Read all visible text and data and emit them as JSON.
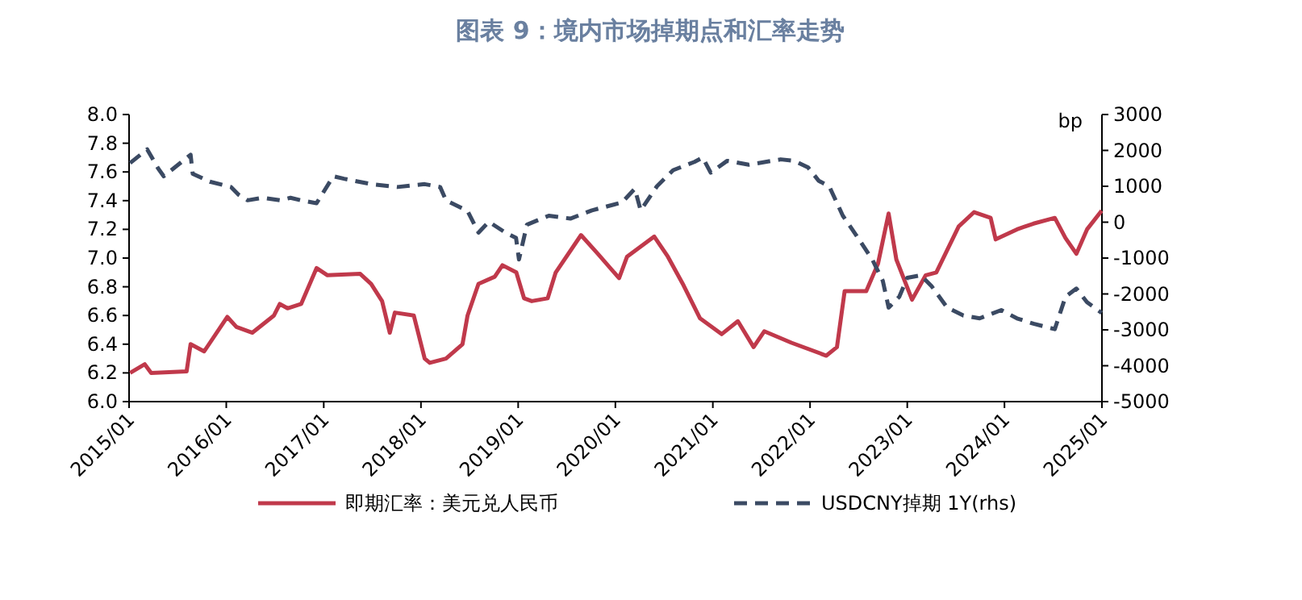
{
  "chart_data": {
    "type": "line",
    "title": "图表 9：境内市场掉期点和汇率走势",
    "y2label": "bp",
    "legend": "bottom",
    "grid": false,
    "xlim": [
      "2015-01-01",
      "2025-01-01"
    ],
    "xticks": [
      {
        "value": "2015-01-01",
        "label": "2015/01"
      },
      {
        "value": "2016-01-01",
        "label": "2016/01"
      },
      {
        "value": "2017-01-01",
        "label": "2017/01"
      },
      {
        "value": "2018-01-01",
        "label": "2018/01"
      },
      {
        "value": "2019-01-01",
        "label": "2019/01"
      },
      {
        "value": "2020-01-01",
        "label": "2020/01"
      },
      {
        "value": "2021-01-01",
        "label": "2021/01"
      },
      {
        "value": "2022-01-01",
        "label": "2022/01"
      },
      {
        "value": "2023-01-01",
        "label": "2023/01"
      },
      {
        "value": "2024-01-01",
        "label": "2024/01"
      },
      {
        "value": "2025-01-01",
        "label": "2025/01"
      }
    ],
    "ylim": [
      6,
      8
    ],
    "yticks": [
      {
        "value": 6,
        "label": "6.0"
      },
      {
        "value": 6.2,
        "label": "6.2"
      },
      {
        "value": 6.4,
        "label": "6.4"
      },
      {
        "value": 6.6,
        "label": "6.6"
      },
      {
        "value": 6.8,
        "label": "6.8"
      },
      {
        "value": 7,
        "label": "7.0"
      },
      {
        "value": 7.2,
        "label": "7.2"
      },
      {
        "value": 7.4,
        "label": "7.4"
      },
      {
        "value": 7.6,
        "label": "7.6"
      },
      {
        "value": 7.8,
        "label": "7.8"
      },
      {
        "value": 8,
        "label": "8.0"
      }
    ],
    "y2lim": [
      -5000,
      3000
    ],
    "y2ticks": [
      -5000,
      -4000,
      -3000,
      -2000,
      -1000,
      0,
      1000,
      2000,
      3000
    ],
    "series": [
      {
        "name": "即期汇率：美元兑人民币",
        "color": "#c0394b",
        "line_style": "solid",
        "x": [
          "2015-01-05",
          "2015-03-01",
          "2015-03-25",
          "2015-08-05",
          "2015-08-20",
          "2015-10-10",
          "2016-01-05",
          "2016-02-08",
          "2016-04-08",
          "2016-06-28",
          "2016-07-20",
          "2016-08-18",
          "2016-10-08",
          "2016-12-05",
          "2017-01-15",
          "2017-05-18",
          "2017-06-28",
          "2017-08-08",
          "2017-09-06",
          "2017-09-25",
          "2017-12-05",
          "2018-01-15",
          "2018-02-03",
          "2018-04-05",
          "2018-06-06",
          "2018-06-25",
          "2018-08-05",
          "2018-10-05",
          "2018-11-03",
          "2018-12-25",
          "2019-01-23",
          "2019-02-21",
          "2019-04-22",
          "2019-05-22",
          "2019-08-25",
          "2019-10-27",
          "2020-01-15",
          "2020-02-14",
          "2020-05-26",
          "2020-07-16",
          "2020-09-13",
          "2020-11-14",
          "2021-02-03",
          "2021-04-05",
          "2021-06-03",
          "2021-07-13",
          "2021-10-23",
          "2022-03-03",
          "2022-04-12",
          "2022-05-11",
          "2022-07-31",
          "2022-09-13",
          "2022-10-23",
          "2022-11-21",
          "2023-01-19",
          "2023-03-11",
          "2023-04-20",
          "2023-07-13",
          "2023-09-09",
          "2023-11-10",
          "2023-11-29",
          "2024-02-17",
          "2024-04-19",
          "2024-07-08",
          "2024-08-17",
          "2024-09-27",
          "2024-11-06",
          "2024-12-31"
        ],
        "values": [
          6.2,
          6.26,
          6.2,
          6.21,
          6.4,
          6.35,
          6.59,
          6.52,
          6.48,
          6.6,
          6.68,
          6.65,
          6.68,
          6.93,
          6.88,
          6.89,
          6.82,
          6.7,
          6.48,
          6.62,
          6.6,
          6.3,
          6.27,
          6.3,
          6.4,
          6.6,
          6.82,
          6.87,
          6.95,
          6.9,
          6.72,
          6.7,
          6.72,
          6.9,
          7.16,
          7.03,
          6.86,
          7.01,
          7.15,
          7.01,
          6.81,
          6.58,
          6.47,
          6.56,
          6.38,
          6.49,
          6.41,
          6.32,
          6.38,
          6.77,
          6.77,
          6.96,
          7.31,
          6.99,
          6.71,
          6.88,
          6.9,
          7.22,
          7.32,
          7.28,
          7.13,
          7.2,
          7.24,
          7.28,
          7.14,
          7.03,
          7.2,
          7.33
        ]
      },
      {
        "name": "USDCNY掉期 1Y(rhs)",
        "color": "#3b4a63",
        "line_style": "dashed",
        "axis": "y2",
        "x": [
          "2015-01-05",
          "2015-03-10",
          "2015-04-20",
          "2015-05-11",
          "2015-08-20",
          "2015-08-28",
          "2015-10-31",
          "2016-01-19",
          "2016-02-17",
          "2016-03-21",
          "2016-05-18",
          "2016-07-20",
          "2016-08-29",
          "2016-10-08",
          "2016-12-05",
          "2017-02-06",
          "2017-03-18",
          "2017-06-28",
          "2017-10-05",
          "2018-01-15",
          "2018-03-14",
          "2018-04-05",
          "2018-06-25",
          "2018-08-05",
          "2018-09-13",
          "2018-11-14",
          "2018-12-24",
          "2019-01-04",
          "2019-02-03",
          "2019-04-26",
          "2019-07-16",
          "2019-10-05",
          "2020-01-26",
          "2020-03-14",
          "2020-04-05",
          "2020-06-05",
          "2020-08-05",
          "2020-10-24",
          "2020-11-24",
          "2020-12-24",
          "2021-02-24",
          "2021-05-16",
          "2021-09-13",
          "2021-11-03",
          "2021-12-24",
          "2022-02-03",
          "2022-03-14",
          "2022-05-04",
          "2022-06-22",
          "2022-08-22",
          "2022-10-01",
          "2022-10-23",
          "2022-12-02",
          "2023-01-01",
          "2023-02-21",
          "2023-04-02",
          "2023-05-31",
          "2023-07-31",
          "2023-09-30",
          "2023-12-20",
          "2024-02-17",
          "2024-04-19",
          "2024-07-08",
          "2024-08-17",
          "2024-09-27",
          "2024-11-06",
          "2024-12-31"
        ],
        "values": [
          1650,
          2030,
          1500,
          1280,
          1880,
          1350,
          1130,
          980,
          760,
          610,
          680,
          610,
          680,
          610,
          530,
          1280,
          1210,
          1060,
          980,
          1060,
          980,
          610,
          310,
          -290,
          10,
          -290,
          -440,
          -1040,
          -70,
          180,
          100,
          330,
          550,
          930,
          330,
          1000,
          1450,
          1680,
          1800,
          1380,
          1710,
          1600,
          1750,
          1710,
          1530,
          1150,
          1000,
          180,
          -350,
          -1030,
          -1630,
          -2380,
          -2080,
          -1550,
          -1480,
          -1780,
          -2380,
          -2600,
          -2680,
          -2450,
          -2680,
          -2830,
          -2980,
          -2080,
          -1850,
          -2230,
          -2530
        ]
      }
    ]
  }
}
